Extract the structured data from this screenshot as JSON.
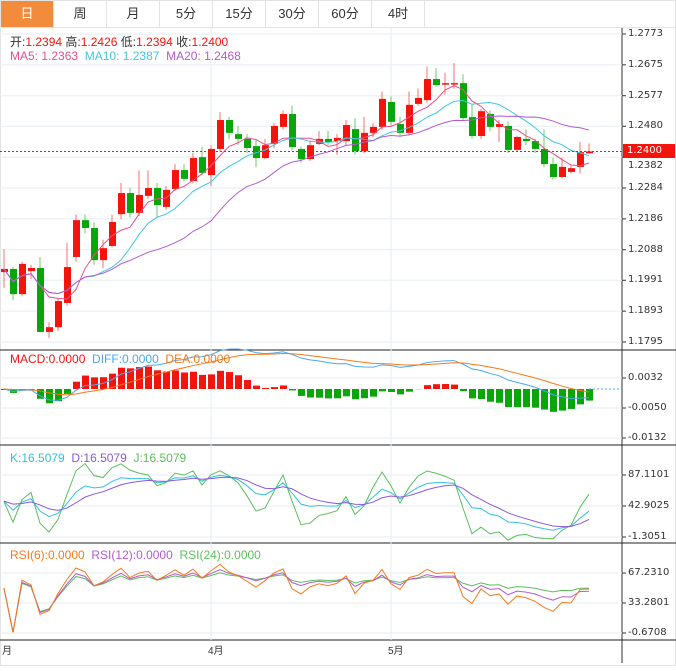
{
  "tabs": [
    "日",
    "周",
    "月",
    "5分",
    "15分",
    "30分",
    "60分",
    "4时"
  ],
  "active_tab": 0,
  "ohlc_header": {
    "open_label": "开:",
    "open": "1.2394",
    "high_label": "高:",
    "high": "1.2426",
    "low_label": "低:",
    "low": "1.2394",
    "close_label": "收:",
    "close": "1.2400"
  },
  "ma_header": {
    "ma5": "MA5: 1.2363",
    "ma10": "MA10: 1.2387",
    "ma20": "MA20: 1.2468"
  },
  "macd_header": {
    "macd": "MACD:0.0000",
    "diff": "DIFF:0.0000",
    "dea": "DEA:0.0000"
  },
  "kdj_header": {
    "k": "K:16.5079",
    "d": "D:16.5079",
    "j": "J:16.5079"
  },
  "rsi_header": {
    "rsi6": "RSI(6):0.0000",
    "rsi12": "RSI(12):0.0000",
    "rsi24": "RSI(24):0.0000"
  },
  "current_price": "1.2400",
  "colors": {
    "up": "#f5140c",
    "down": "#08a608",
    "ma5": "#e8508a",
    "ma10": "#3ec8e0",
    "ma20": "#b25bd0",
    "diff": "#4aa8f0",
    "dea": "#f57a1a",
    "k": "#35c0e0",
    "d": "#8a5ad8",
    "j": "#5cbf5c",
    "rsi6": "#f57a1a",
    "rsi12": "#b25bd0",
    "rsi24": "#5cbf5c",
    "tab_active": "#f38b3c"
  },
  "chart_data": {
    "type": "candlestick",
    "price_axis": [
      "1.2773",
      "1.2675",
      "1.2577",
      "1.2480",
      "1.2382",
      "1.2284",
      "1.2186",
      "1.2088",
      "1.1991",
      "1.1893",
      "1.1795"
    ],
    "price_range": [
      1.1795,
      1.2773
    ],
    "macd_axis": [
      "0.0032",
      "-0.0050",
      "-0.0132"
    ],
    "kdj_axis": [
      "87.1101",
      "42.9025",
      "-1.3051"
    ],
    "rsi_axis": [
      "67.2310",
      "33.2801",
      "-0.6708"
    ],
    "x_labels": [
      {
        "index": 0,
        "text": "月"
      },
      {
        "index": 23,
        "text": "4月"
      },
      {
        "index": 43,
        "text": "5月"
      }
    ],
    "candles": [
      [
        1.2017,
        1.2027,
        1.209,
        1.1967
      ],
      [
        1.2027,
        1.1947,
        1.2033,
        1.1928
      ],
      [
        1.1947,
        1.2043,
        1.205,
        1.194
      ],
      [
        1.202,
        1.203,
        1.204,
        1.1995
      ],
      [
        1.203,
        1.1827,
        1.2065,
        1.1825
      ],
      [
        1.1827,
        1.1842,
        1.1858,
        1.1808
      ],
      [
        1.1842,
        1.1925,
        1.1935,
        1.183
      ],
      [
        1.1919,
        1.2033,
        1.211,
        1.191
      ],
      [
        1.2065,
        1.2182,
        1.22,
        1.205
      ],
      [
        1.2182,
        1.2157,
        1.22,
        1.214
      ],
      [
        1.2157,
        1.2055,
        1.2175,
        1.204
      ],
      [
        1.2055,
        1.2093,
        1.212,
        1.203
      ],
      [
        1.21,
        1.2176,
        1.22,
        1.2095
      ],
      [
        1.2201,
        1.2268,
        1.23,
        1.2185
      ],
      [
        1.2268,
        1.2205,
        1.2285,
        1.219
      ],
      [
        1.2205,
        1.2262,
        1.234,
        1.2195
      ],
      [
        1.2259,
        1.2284,
        1.234,
        1.225
      ],
      [
        1.2284,
        1.223,
        1.23,
        1.219
      ],
      [
        1.2224,
        1.2278,
        1.229,
        1.2215
      ],
      [
        1.2281,
        1.2341,
        1.236,
        1.2275
      ],
      [
        1.2341,
        1.2313,
        1.236,
        1.2305
      ],
      [
        1.2306,
        1.2379,
        1.2395,
        1.23
      ],
      [
        1.2382,
        1.2332,
        1.2415,
        1.2325
      ],
      [
        1.2325,
        1.2408,
        1.242,
        1.229
      ],
      [
        1.2408,
        1.25,
        1.2525,
        1.24
      ],
      [
        1.25,
        1.2459,
        1.251,
        1.244
      ],
      [
        1.2455,
        1.244,
        1.248,
        1.242
      ],
      [
        1.244,
        1.2411,
        1.2455,
        1.2395
      ],
      [
        1.2417,
        1.2379,
        1.244,
        1.235
      ],
      [
        1.2379,
        1.242,
        1.244,
        1.2375
      ],
      [
        1.2424,
        1.2481,
        1.249,
        1.241
      ],
      [
        1.2478,
        1.2519,
        1.253,
        1.247
      ],
      [
        1.2519,
        1.2414,
        1.2545,
        1.2405
      ],
      [
        1.2408,
        1.2376,
        1.2415,
        1.2365
      ],
      [
        1.2376,
        1.242,
        1.2435,
        1.237
      ],
      [
        1.2424,
        1.244,
        1.2465,
        1.242
      ],
      [
        1.244,
        1.243,
        1.2465,
        1.242
      ],
      [
        1.2433,
        1.2443,
        1.2455,
        1.239
      ],
      [
        1.2433,
        1.2484,
        1.25,
        1.242
      ],
      [
        1.2471,
        1.2401,
        1.2505,
        1.239
      ],
      [
        1.2401,
        1.2459,
        1.251,
        1.2395
      ],
      [
        1.2459,
        1.2478,
        1.249,
        1.2445
      ],
      [
        1.2478,
        1.2567,
        1.259,
        1.247
      ],
      [
        1.2557,
        1.2494,
        1.2575,
        1.248
      ],
      [
        1.2487,
        1.2459,
        1.251,
        1.2445
      ],
      [
        1.2459,
        1.2548,
        1.259,
        1.245
      ],
      [
        1.2551,
        1.257,
        1.26,
        1.2545
      ],
      [
        1.2563,
        1.263,
        1.267,
        1.2555
      ],
      [
        1.263,
        1.2611,
        1.2665,
        1.2605
      ],
      [
        1.2614,
        1.2617,
        1.265,
        1.258
      ],
      [
        1.2614,
        1.2617,
        1.2681,
        1.26
      ],
      [
        1.2617,
        1.2506,
        1.2645,
        1.25
      ],
      [
        1.2509,
        1.2449,
        1.255,
        1.244
      ],
      [
        1.2449,
        1.2528,
        1.2535,
        1.244
      ],
      [
        1.2519,
        1.2478,
        1.253,
        1.2465
      ],
      [
        1.2478,
        1.2487,
        1.25,
        1.243
      ],
      [
        1.2481,
        1.2405,
        1.2495,
        1.2395
      ],
      [
        1.2405,
        1.2446,
        1.245,
        1.24
      ],
      [
        1.244,
        1.2433,
        1.247,
        1.242
      ],
      [
        1.2433,
        1.2408,
        1.244,
        1.2395
      ],
      [
        1.2408,
        1.236,
        1.247,
        1.235
      ],
      [
        1.236,
        1.2319,
        1.238,
        1.231
      ],
      [
        1.2319,
        1.2351,
        1.238,
        1.2315
      ],
      [
        1.2335,
        1.2347,
        1.2355,
        1.233
      ],
      [
        1.2351,
        1.2398,
        1.243,
        1.233
      ],
      [
        1.2394,
        1.24,
        1.2426,
        1.2394
      ]
    ]
  }
}
